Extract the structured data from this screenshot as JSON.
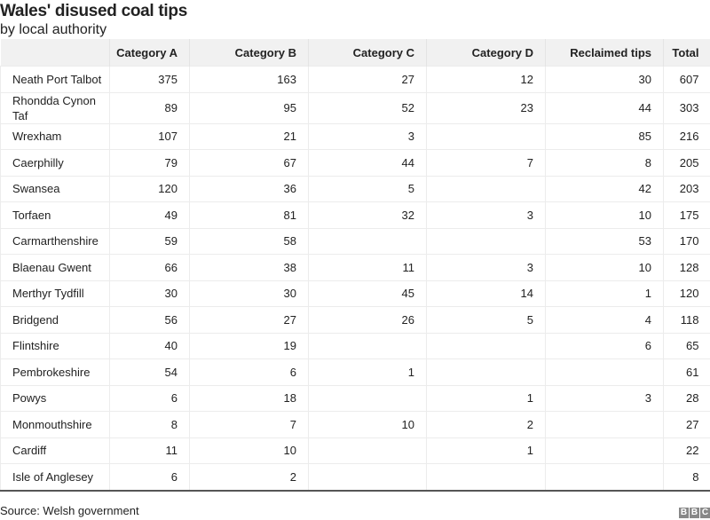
{
  "chart_data": {
    "type": "table",
    "title": "Wales' disused coal tips",
    "subtitle": "by local authority",
    "columns": [
      "",
      "Category A",
      "Category B",
      "Category C",
      "Category D",
      "Reclaimed tips",
      "Total"
    ],
    "rows": [
      [
        "Neath Port Talbot",
        "375",
        "163",
        "27",
        "12",
        "30",
        "607"
      ],
      [
        "Rhondda Cynon Taf",
        "89",
        "95",
        "52",
        "23",
        "44",
        "303"
      ],
      [
        "Wrexham",
        "107",
        "21",
        "3",
        "",
        "85",
        "216"
      ],
      [
        "Caerphilly",
        "79",
        "67",
        "44",
        "7",
        "8",
        "205"
      ],
      [
        "Swansea",
        "120",
        "36",
        "5",
        "",
        "42",
        "203"
      ],
      [
        "Torfaen",
        "49",
        "81",
        "32",
        "3",
        "10",
        "175"
      ],
      [
        "Carmarthenshire",
        "59",
        "58",
        "",
        "",
        "53",
        "170"
      ],
      [
        "Blaenau Gwent",
        "66",
        "38",
        "11",
        "3",
        "10",
        "128"
      ],
      [
        "Merthyr Tydfill",
        "30",
        "30",
        "45",
        "14",
        "1",
        "120"
      ],
      [
        "Bridgend",
        "56",
        "27",
        "26",
        "5",
        "4",
        "118"
      ],
      [
        "Flintshire",
        "40",
        "19",
        "",
        "",
        "6",
        "65"
      ],
      [
        "Pembrokeshire",
        "54",
        "6",
        "1",
        "",
        "",
        "61"
      ],
      [
        "Powys",
        "6",
        "18",
        "",
        "1",
        "3",
        "28"
      ],
      [
        "Monmouthshire",
        "8",
        "7",
        "10",
        "2",
        "",
        "27"
      ],
      [
        "Cardiff",
        "11",
        "10",
        "",
        "1",
        "",
        "22"
      ],
      [
        "Isle of Anglesey",
        "6",
        "2",
        "",
        "",
        "",
        "8"
      ]
    ],
    "source": "Source: Welsh government"
  },
  "logo": "BBC",
  "colors": {
    "header_bg": "#f1f1f1",
    "logo": "#888888"
  }
}
